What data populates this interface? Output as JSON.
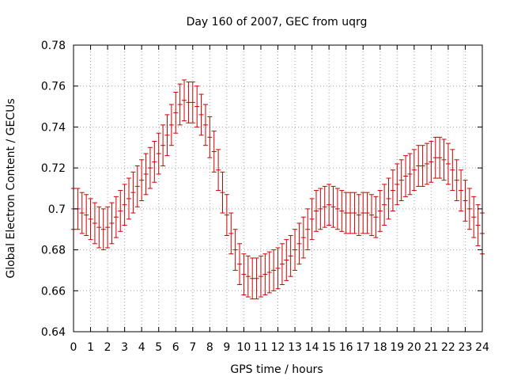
{
  "chart_data": {
    "type": "scatter",
    "title": "Day 160 of 2007, GEC from uqrg",
    "xlabel": "GPS time / hours",
    "ylabel": "Global Electron Content / GECUs",
    "xlim": [
      0,
      24
    ],
    "ylim": [
      0.64,
      0.78
    ],
    "xticks": [
      "0",
      "1",
      "2",
      "3",
      "4",
      "5",
      "6",
      "7",
      "8",
      "9",
      "10",
      "11",
      "12",
      "13",
      "14",
      "15",
      "16",
      "17",
      "18",
      "19",
      "20",
      "21",
      "22",
      "23",
      "24"
    ],
    "yticks": [
      "0.64",
      "0.66",
      "0.68",
      "0.7",
      "0.72",
      "0.74",
      "0.76",
      "0.78"
    ],
    "grid": true,
    "legend": "none",
    "series": [
      {
        "color": "#cc0000",
        "marker": "error-bars",
        "error": 0.01,
        "x": [
          0,
          0.25,
          0.5,
          0.75,
          1,
          1.25,
          1.5,
          1.75,
          2,
          2.25,
          2.5,
          2.75,
          3,
          3.25,
          3.5,
          3.75,
          4,
          4.25,
          4.5,
          4.75,
          5,
          5.25,
          5.5,
          5.75,
          6,
          6.25,
          6.5,
          6.75,
          7,
          7.25,
          7.5,
          7.75,
          8,
          8.25,
          8.5,
          8.75,
          9,
          9.25,
          9.5,
          9.75,
          10,
          10.25,
          10.5,
          10.75,
          11,
          11.25,
          11.5,
          11.75,
          12,
          12.25,
          12.5,
          12.75,
          13,
          13.25,
          13.5,
          13.75,
          14,
          14.25,
          14.5,
          14.75,
          15,
          15.25,
          15.5,
          15.75,
          16,
          16.25,
          16.5,
          16.75,
          17,
          17.25,
          17.5,
          17.75,
          18,
          18.25,
          18.5,
          18.75,
          19,
          19.25,
          19.5,
          19.75,
          20,
          20.25,
          20.5,
          20.75,
          21,
          21.25,
          21.5,
          21.75,
          22,
          22.25,
          22.5,
          22.75,
          23,
          23.25,
          23.5,
          23.75,
          24
        ],
        "y": [
          0.7,
          0.7,
          0.698,
          0.697,
          0.695,
          0.693,
          0.691,
          0.69,
          0.691,
          0.693,
          0.696,
          0.699,
          0.702,
          0.705,
          0.708,
          0.711,
          0.714,
          0.717,
          0.72,
          0.723,
          0.727,
          0.731,
          0.736,
          0.741,
          0.747,
          0.751,
          0.753,
          0.752,
          0.752,
          0.75,
          0.746,
          0.741,
          0.735,
          0.728,
          0.719,
          0.708,
          0.697,
          0.688,
          0.68,
          0.673,
          0.668,
          0.667,
          0.666,
          0.666,
          0.667,
          0.668,
          0.669,
          0.67,
          0.671,
          0.673,
          0.675,
          0.677,
          0.68,
          0.683,
          0.686,
          0.69,
          0.695,
          0.699,
          0.7,
          0.701,
          0.702,
          0.701,
          0.7,
          0.699,
          0.698,
          0.698,
          0.698,
          0.697,
          0.698,
          0.698,
          0.697,
          0.696,
          0.699,
          0.702,
          0.705,
          0.709,
          0.712,
          0.714,
          0.716,
          0.717,
          0.719,
          0.721,
          0.721,
          0.722,
          0.723,
          0.725,
          0.725,
          0.724,
          0.722,
          0.719,
          0.714,
          0.709,
          0.704,
          0.7,
          0.696,
          0.692,
          0.688
        ]
      }
    ]
  }
}
